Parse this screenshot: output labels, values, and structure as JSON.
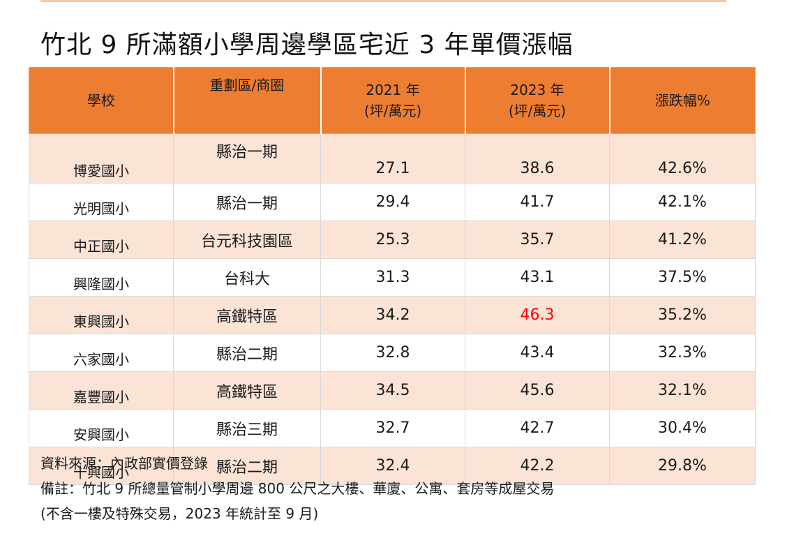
{
  "title": "竹北 9 所滿額小學周邊學區宅近 3 年單價漲幅",
  "table": {
    "headers": {
      "school": "學校",
      "district": "重劃區/商圈",
      "y2021_line1": "2021 年",
      "y2021_line2": "(坪/萬元)",
      "y2023_line1": "2023 年",
      "y2023_line2": "(坪/萬元)",
      "change": "漲跌幅%"
    },
    "rows": [
      {
        "school": "博愛國小",
        "district": "縣治一期",
        "y2021": "27.1",
        "y2023": "38.6",
        "change": "42.6%"
      },
      {
        "school": "光明國小",
        "district": "縣治一期",
        "y2021": "29.4",
        "y2023": "41.7",
        "change": "42.1%"
      },
      {
        "school": "中正國小",
        "district": "台元科技園區",
        "y2021": "25.3",
        "y2023": "35.7",
        "change": "41.2%"
      },
      {
        "school": "興隆國小",
        "district": "台科大",
        "y2021": "31.3",
        "y2023": "43.1",
        "change": "37.5%"
      },
      {
        "school": "東興國小",
        "district": "高鐵特區",
        "y2021": "34.2",
        "y2023": "46.3",
        "change": "35.2%"
      },
      {
        "school": "六家國小",
        "district": "縣治二期",
        "y2021": "32.8",
        "y2023": "43.4",
        "change": "32.3%"
      },
      {
        "school": "嘉豐國小",
        "district": "高鐵特區",
        "y2021": "34.5",
        "y2023": "45.6",
        "change": "32.1%"
      },
      {
        "school": "安興國小",
        "district": "縣治三期",
        "y2021": "32.7",
        "y2023": "42.7",
        "change": "30.4%"
      },
      {
        "school": "十興國小",
        "district": "縣治二期",
        "y2021": "32.4",
        "y2023": "42.2",
        "change": "29.8%"
      }
    ]
  },
  "notes": {
    "source": "資料來源：內政部實價登錄",
    "remark_line1": "備註：竹北 9 所總量管制小學周邊 800 公尺之大樓、華廈、公寓、套房等成屋交易",
    "remark_line2": "(不含一樓及特殊交易，2023 年統計至 9 月)"
  },
  "colors": {
    "header_bg": "#ed7d31",
    "stripe_bg": "#fbe3d6",
    "highlight_text": "#ff0000"
  }
}
